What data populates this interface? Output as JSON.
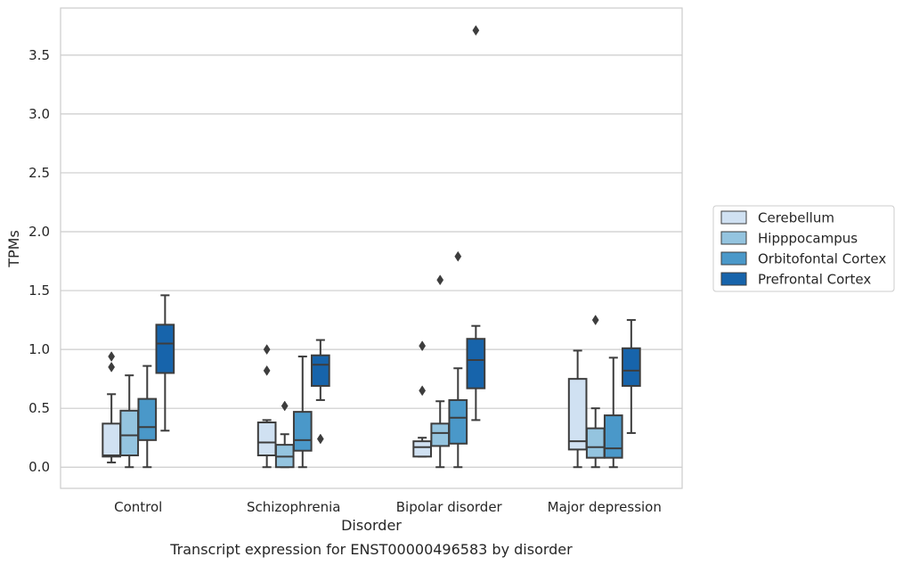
{
  "chart_data": {
    "type": "boxplot",
    "caption": "Transcript expression for ENST00000496583 by disorder",
    "xlabel": "Disorder",
    "ylabel": "TPMs",
    "ylim": [
      -0.18,
      3.9
    ],
    "yticks": [
      0.0,
      0.5,
      1.0,
      1.5,
      2.0,
      2.5,
      3.0,
      3.5
    ],
    "ytick_labels": [
      "0.0",
      "0.5",
      "1.0",
      "1.5",
      "2.0",
      "2.5",
      "3.0",
      "3.5"
    ],
    "grid": "horizontal",
    "legend_placement": "right",
    "categories": [
      "Control",
      "Schizophrenia",
      "Bipolar disorder",
      "Major depression"
    ],
    "series": [
      {
        "name": "Cerebellum",
        "color": "#d0e1f2",
        "boxes": [
          {
            "whislo": 0.04,
            "q1": 0.09,
            "med": 0.1,
            "q3": 0.37,
            "whishi": 0.62,
            "fliers": [
              0.85,
              0.94
            ]
          },
          {
            "whislo": 0.0,
            "q1": 0.1,
            "med": 0.21,
            "q3": 0.38,
            "whishi": 0.4,
            "fliers": [
              0.82,
              1.0
            ]
          },
          {
            "whislo": 0.09,
            "q1": 0.09,
            "med": 0.17,
            "q3": 0.22,
            "whishi": 0.25,
            "fliers": [
              0.65,
              1.03
            ]
          },
          {
            "whislo": 0.0,
            "q1": 0.15,
            "med": 0.22,
            "q3": 0.75,
            "whishi": 0.99,
            "fliers": []
          }
        ]
      },
      {
        "name": "Hipppocampus",
        "color": "#94c4df",
        "boxes": [
          {
            "whislo": 0.0,
            "q1": 0.1,
            "med": 0.27,
            "q3": 0.48,
            "whishi": 0.78,
            "fliers": []
          },
          {
            "whislo": 0.0,
            "q1": 0.0,
            "med": 0.09,
            "q3": 0.19,
            "whishi": 0.28,
            "fliers": [
              0.52
            ]
          },
          {
            "whislo": 0.0,
            "q1": 0.18,
            "med": 0.29,
            "q3": 0.37,
            "whishi": 0.56,
            "fliers": [
              1.59
            ]
          },
          {
            "whislo": 0.0,
            "q1": 0.08,
            "med": 0.17,
            "q3": 0.33,
            "whishi": 0.5,
            "fliers": [
              1.25
            ]
          }
        ]
      },
      {
        "name": "Orbitofontal Cortex",
        "color": "#4a98c9",
        "boxes": [
          {
            "whislo": 0.0,
            "q1": 0.23,
            "med": 0.34,
            "q3": 0.58,
            "whishi": 0.86,
            "fliers": []
          },
          {
            "whislo": 0.0,
            "q1": 0.14,
            "med": 0.23,
            "q3": 0.47,
            "whishi": 0.94,
            "fliers": []
          },
          {
            "whislo": 0.0,
            "q1": 0.2,
            "med": 0.42,
            "q3": 0.57,
            "whishi": 0.84,
            "fliers": [
              1.79
            ]
          },
          {
            "whislo": 0.0,
            "q1": 0.08,
            "med": 0.16,
            "q3": 0.44,
            "whishi": 0.93,
            "fliers": []
          }
        ]
      },
      {
        "name": "Prefrontal Cortex",
        "color": "#1764ab",
        "boxes": [
          {
            "whislo": 0.31,
            "q1": 0.8,
            "med": 1.05,
            "q3": 1.21,
            "whishi": 1.46,
            "fliers": []
          },
          {
            "whislo": 0.57,
            "q1": 0.69,
            "med": 0.87,
            "q3": 0.95,
            "whishi": 1.08,
            "fliers": [
              0.24
            ]
          },
          {
            "whislo": 0.4,
            "q1": 0.67,
            "med": 0.91,
            "q3": 1.09,
            "whishi": 1.2,
            "fliers": [
              3.71
            ]
          },
          {
            "whislo": 0.29,
            "q1": 0.69,
            "med": 0.82,
            "q3": 1.01,
            "whishi": 1.25,
            "fliers": []
          }
        ]
      }
    ]
  }
}
